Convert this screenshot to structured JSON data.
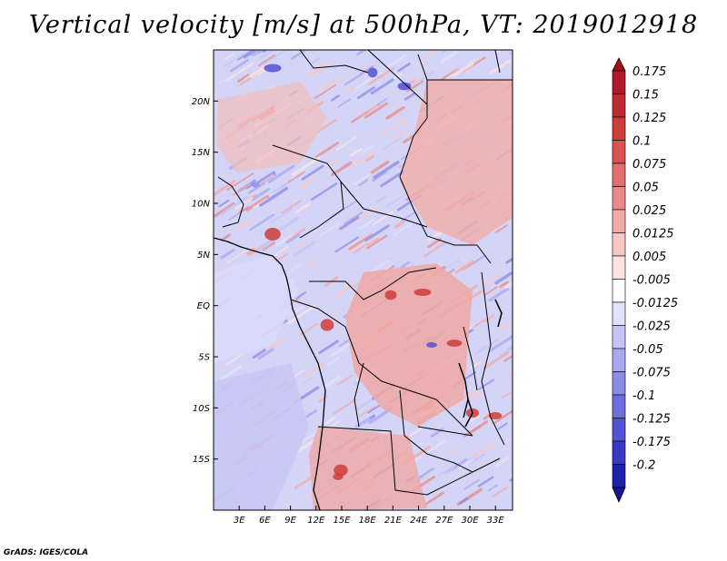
{
  "title": "Vertical velocity [m/s] at 500hPa, VT: 2019012918",
  "footer": "GrADS: IGES/COLA",
  "map": {
    "lat_range": [
      -20,
      25
    ],
    "lon_range": [
      0,
      35
    ],
    "lat_ticks": [
      {
        "value": 20,
        "label": "20N"
      },
      {
        "value": 15,
        "label": "15N"
      },
      {
        "value": 10,
        "label": "10N"
      },
      {
        "value": 5,
        "label": "5N"
      },
      {
        "value": 0,
        "label": "EQ"
      },
      {
        "value": -5,
        "label": "5S"
      },
      {
        "value": -10,
        "label": "10S"
      },
      {
        "value": -15,
        "label": "15S"
      }
    ],
    "lon_ticks": [
      {
        "value": 3,
        "label": "3E"
      },
      {
        "value": 6,
        "label": "6E"
      },
      {
        "value": 9,
        "label": "9E"
      },
      {
        "value": 12,
        "label": "12E"
      },
      {
        "value": 15,
        "label": "15E"
      },
      {
        "value": 18,
        "label": "18E"
      },
      {
        "value": 21,
        "label": "21E"
      },
      {
        "value": 24,
        "label": "24E"
      },
      {
        "value": 27,
        "label": "27E"
      },
      {
        "value": 30,
        "label": "30E"
      },
      {
        "value": 33,
        "label": "33E"
      }
    ]
  },
  "colorbar": {
    "levels": [
      {
        "label": "0.175",
        "color": "#b2182b"
      },
      {
        "label": "0.15",
        "color": "#c02a32"
      },
      {
        "label": "0.125",
        "color": "#cd3d3c"
      },
      {
        "label": "0.1",
        "color": "#d95353"
      },
      {
        "label": "0.075",
        "color": "#e26d6d"
      },
      {
        "label": "0.05",
        "color": "#ea8a88"
      },
      {
        "label": "0.025",
        "color": "#f2aaa7"
      },
      {
        "label": "0.0125",
        "color": "#f8c8c5"
      },
      {
        "label": "0.005",
        "color": "#fce4e2"
      },
      {
        "label": "-0.005",
        "color": "#ffffff"
      },
      {
        "label": "-0.0125",
        "color": "#e2e2fb"
      },
      {
        "label": "-0.025",
        "color": "#c6c6f6"
      },
      {
        "label": "-0.05",
        "color": "#a9a9f0"
      },
      {
        "label": "-0.075",
        "color": "#8b8be8"
      },
      {
        "label": "-0.1",
        "color": "#6e6ee0"
      },
      {
        "label": "-0.125",
        "color": "#5252d4"
      },
      {
        "label": "-0.175",
        "color": "#3838c4"
      },
      {
        "label": "-0.2",
        "color": "#2020b0"
      }
    ],
    "top_color": "#a50f15",
    "bottom_color": "#14149a"
  }
}
